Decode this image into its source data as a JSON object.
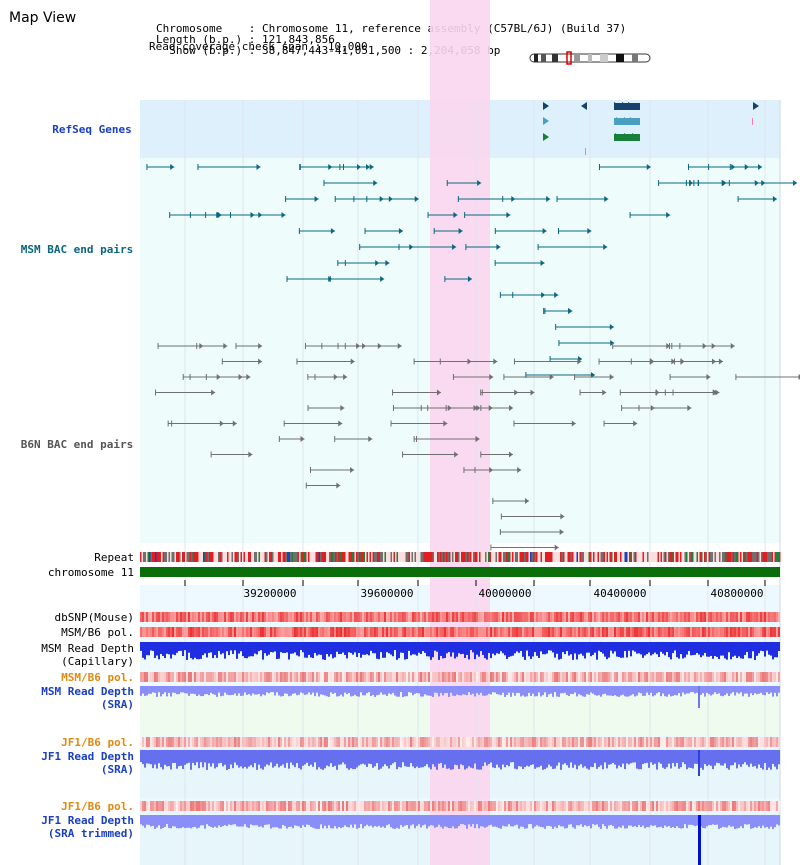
{
  "title": "Map View",
  "info": {
    "chromosome_key": "Chromosome",
    "chromosome_val": "Chromosome 11, reference assembly (C57BL/6J) (Build 37)",
    "length_key": "Length (b.p.)",
    "length_val": "121,843,856",
    "show_key": "Show (b.p.)",
    "show_val": "38,847,443-41,051,500 : 2,204,058 bp",
    "coverage_key": "Read coverage check span",
    "coverage_val": "10,000"
  },
  "tracks": {
    "refseq": "RefSeq Genes",
    "msm_bac": "MSM BAC end pairs",
    "b6n_bac": "B6N BAC end pairs",
    "repeat": "Repeat",
    "chromosome": "chromosome 11",
    "dbsnp": "dbSNP(Mouse)",
    "msm_b6_pol": "MSM/B6 pol.",
    "msm_depth_cap_1": "MSM Read Depth",
    "msm_depth_cap_2": "(Capillary)",
    "msm_b6_pol_sra": "MSM/B6 pol.",
    "msm_depth_sra_1": "MSM Read Depth",
    "msm_depth_sra_2": "(SRA)",
    "jf1_pol_1": "JF1/B6 pol.",
    "jf1_depth_sra_1": "JF1 Read Depth",
    "jf1_depth_sra_2": "(SRA)",
    "jf1_pol_2": "JF1/B6 pol.",
    "jf1_depth_trim_1": "JF1 Read Depth",
    "jf1_depth_trim_2": "(SRA trimmed)"
  },
  "axis_ticks": [
    "39200000",
    "39600000",
    "40000000",
    "40400000",
    "40800000"
  ],
  "colors": {
    "refseq_bg": "#ddf0fb",
    "track_bg": "#eefcfc",
    "highlight": "#f9d6ee",
    "chromosome_bar": "#0a6e0a",
    "msm_feature": "#0b6680",
    "b6n_feature": "#707070"
  }
}
